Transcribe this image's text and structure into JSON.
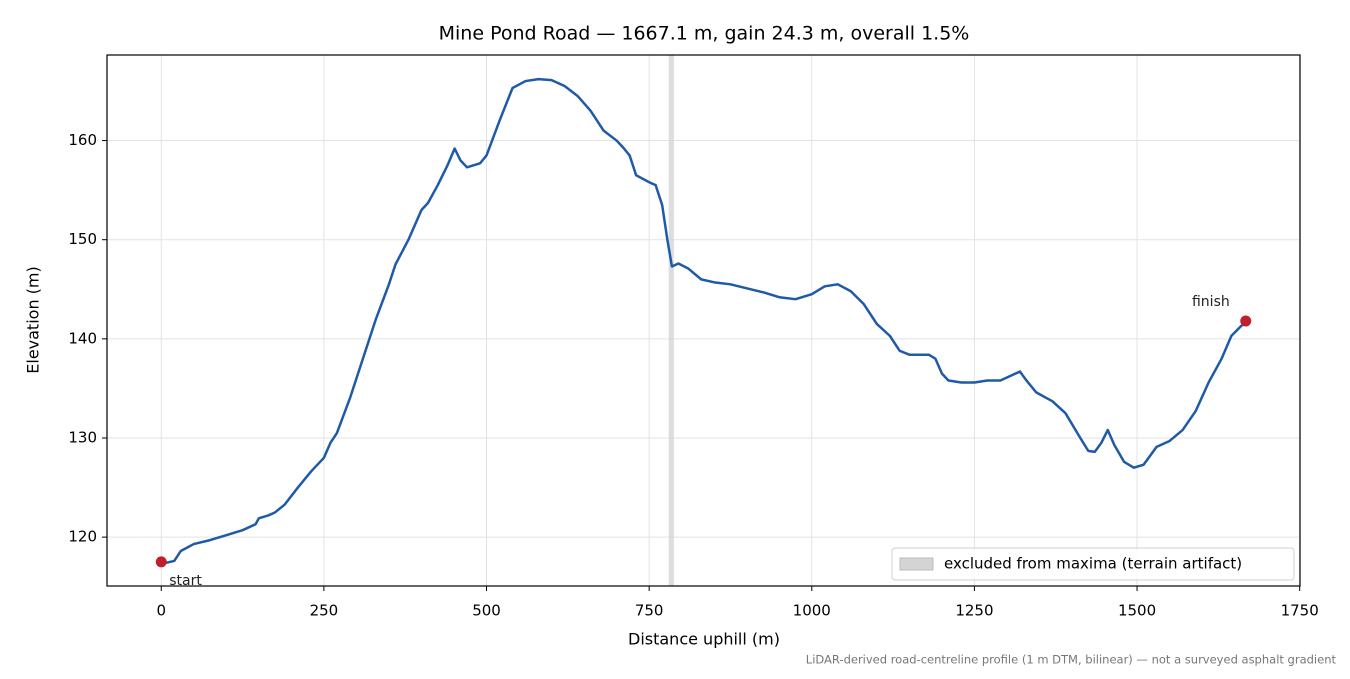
{
  "chart_data": {
    "type": "line",
    "title": "Mine Pond Road — 1667.1 m, gain 24.3 m, overall 1.5%",
    "xlabel": "Distance uphill (m)",
    "ylabel": "Elevation (m)",
    "note": "LiDAR-derived road-centreline profile (1 m DTM, bilinear) — not a surveyed asphalt gradient",
    "xlim": [
      -83.4,
      1750.5
    ],
    "ylim": [
      115.07,
      168.63
    ],
    "xticks": [
      0,
      250,
      500,
      750,
      1000,
      1250,
      1500,
      1750
    ],
    "yticks": [
      120,
      130,
      140,
      150,
      160
    ],
    "grid": true,
    "legend": "lower right",
    "excluded_band": {
      "label": "excluded from maxima (terrain artifact)",
      "range": [
        780,
        788
      ],
      "color": "#d4d4d4"
    },
    "x": [
      0,
      20,
      30,
      50,
      75,
      100,
      125,
      145,
      150,
      165,
      175,
      190,
      210,
      230,
      250,
      260,
      270,
      290,
      310,
      330,
      350,
      360,
      380,
      400,
      410,
      425,
      440,
      451,
      460,
      470,
      490,
      500,
      520,
      540,
      560,
      580,
      600,
      620,
      640,
      660,
      680,
      700,
      710,
      720,
      730,
      750,
      760,
      770,
      778,
      785,
      795,
      810,
      830,
      850,
      875,
      900,
      925,
      950,
      975,
      1000,
      1020,
      1040,
      1060,
      1080,
      1100,
      1120,
      1135,
      1150,
      1180,
      1190,
      1200,
      1210,
      1230,
      1250,
      1270,
      1290,
      1300,
      1320,
      1330,
      1345,
      1370,
      1390,
      1410,
      1425,
      1435,
      1445,
      1455,
      1465,
      1480,
      1495,
      1510,
      1520,
      1530,
      1550,
      1570,
      1590,
      1610,
      1630,
      1645,
      1660,
      1667.1
    ],
    "series": [
      {
        "color": "#1f5aa8",
        "values": [
          117.3,
          117.6,
          118.6,
          119.3,
          119.7,
          120.2,
          120.7,
          121.3,
          121.9,
          122.2,
          122.5,
          123.3,
          125.0,
          126.6,
          128.0,
          129.5,
          130.5,
          134.0,
          138.0,
          142.0,
          145.5,
          147.5,
          150.0,
          153.0,
          153.7,
          155.5,
          157.5,
          159.2,
          158.0,
          157.3,
          157.7,
          158.5,
          162.0,
          165.3,
          166.0,
          166.2,
          166.1,
          165.5,
          164.5,
          163.0,
          161.0,
          160.0,
          159.3,
          158.5,
          156.5,
          155.8,
          155.5,
          153.5,
          150.0,
          147.3,
          147.6,
          147.1,
          146.0,
          145.7,
          145.5,
          145.1,
          144.7,
          144.2,
          144.0,
          144.5,
          145.3,
          145.5,
          144.8,
          143.5,
          141.5,
          140.3,
          138.8,
          138.4,
          138.4,
          138.0,
          136.5,
          135.8,
          135.6,
          135.6,
          135.8,
          135.8,
          136.1,
          136.7,
          135.8,
          134.6,
          133.7,
          132.5,
          130.3,
          128.7,
          128.6,
          129.5,
          130.8,
          129.3,
          127.6,
          127.0,
          127.3,
          128.2,
          129.1,
          129.7,
          130.8,
          132.7,
          135.6,
          138.0,
          140.3,
          141.3,
          141.6
        ]
      }
    ],
    "markers": [
      {
        "label": "start",
        "x": 0,
        "y": 117.5,
        "color": "#c0202a"
      },
      {
        "label": "finish",
        "x": 1667.1,
        "y": 141.8,
        "color": "#c0202a"
      }
    ]
  }
}
